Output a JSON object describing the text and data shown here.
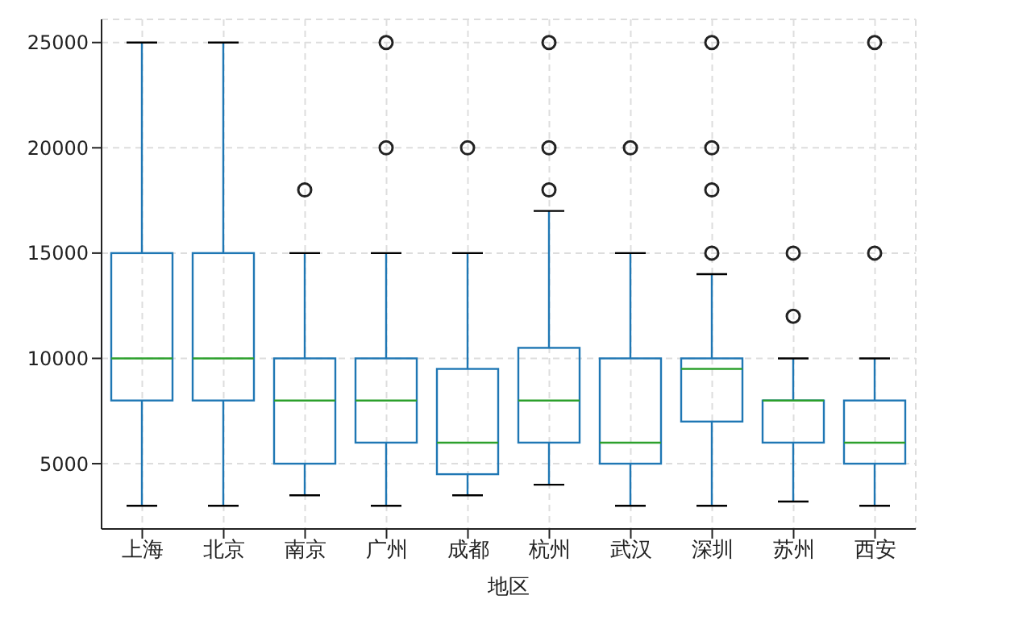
{
  "chart_data": {
    "type": "box",
    "categories": [
      "上海",
      "北京",
      "南京",
      "广州",
      "成都",
      "杭州",
      "武汉",
      "深圳",
      "苏州",
      "西安"
    ],
    "xlabel": "地区",
    "ylim": [
      1900,
      26100
    ],
    "yticks": [
      5000,
      10000,
      15000,
      20000,
      25000
    ],
    "grid": true,
    "series": [
      {
        "color": "#1f77b4",
        "boxes": [
          {
            "low": 3000,
            "q1": 8000,
            "median": 10000,
            "q3": 15000,
            "high": 25000
          },
          {
            "low": 3000,
            "q1": 8000,
            "median": 10000,
            "q3": 15000,
            "high": 25000
          },
          {
            "low": 3500,
            "q1": 5000,
            "median": 8000,
            "q3": 10000,
            "high": 15000,
            "outliers": [
              18000
            ]
          },
          {
            "low": 3000,
            "q1": 6000,
            "median": 8000,
            "q3": 10000,
            "high": 15000,
            "outliers": [
              20000,
              25000
            ]
          },
          {
            "low": 3500,
            "q1": 4500,
            "median": 6000,
            "q3": 9500,
            "high": 15000,
            "outliers": [
              20000
            ]
          },
          {
            "low": 4000,
            "q1": 6000,
            "median": 8000,
            "q3": 10500,
            "high": 17000,
            "outliers": [
              18000,
              20000,
              25000
            ]
          },
          {
            "low": 3000,
            "q1": 5000,
            "median": 6000,
            "q3": 10000,
            "high": 15000,
            "outliers": [
              20000
            ]
          },
          {
            "low": 3000,
            "q1": 7000,
            "median": 9500,
            "q3": 10000,
            "high": 14000,
            "outliers": [
              15000,
              18000,
              20000,
              25000
            ]
          },
          {
            "low": 3200,
            "q1": 6000,
            "median": 8000,
            "q3": 8000,
            "high": 10000,
            "outliers": [
              12000,
              15000
            ]
          },
          {
            "low": 3000,
            "q1": 5000,
            "median": 6000,
            "q3": 8000,
            "high": 10000,
            "outliers": [
              15000,
              25000
            ]
          }
        ]
      }
    ]
  }
}
